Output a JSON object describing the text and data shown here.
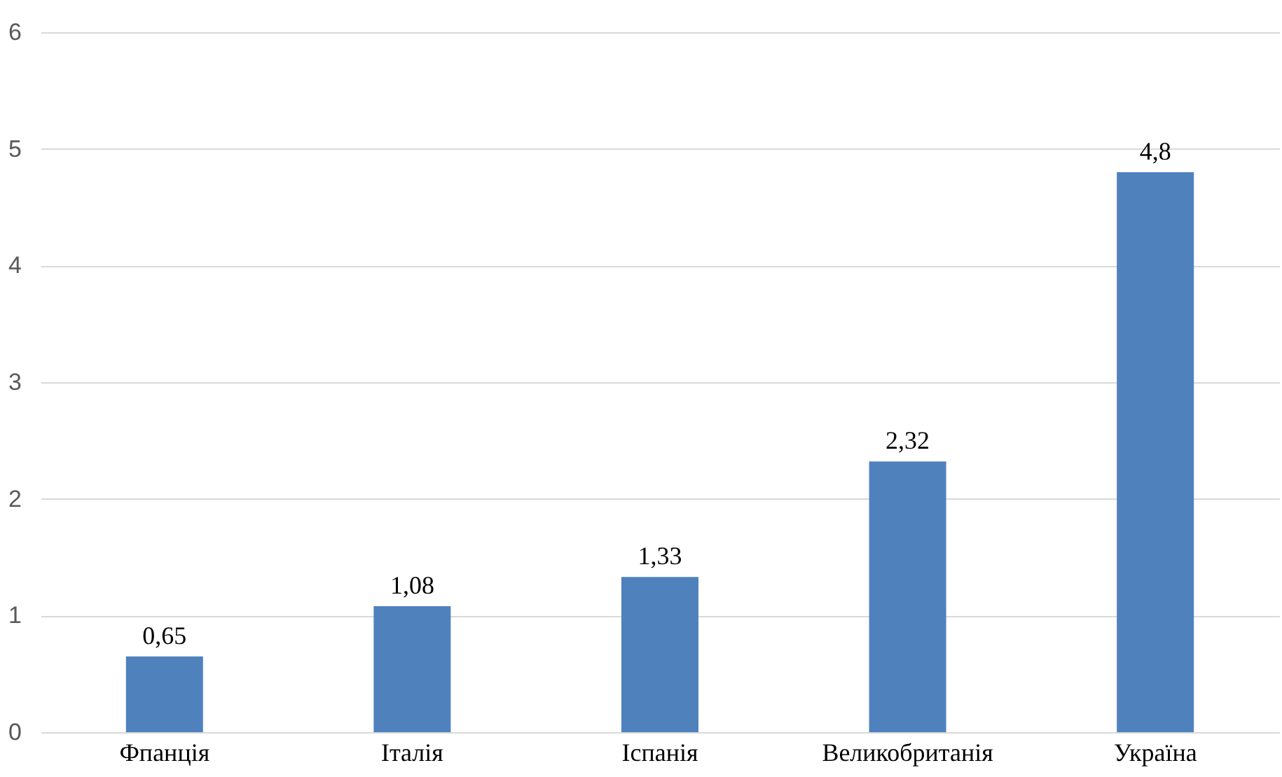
{
  "chart_data": {
    "type": "bar",
    "categories": [
      "Фпанція",
      "Італія",
      "Іспанія",
      "Великобританія",
      "Україна"
    ],
    "values": [
      0.65,
      1.08,
      1.33,
      2.32,
      4.8
    ],
    "value_labels": [
      "0,65",
      "1,08",
      "1,33",
      "2,32",
      "4,8"
    ],
    "color": "#4f81bd",
    "ylim": [
      0,
      6
    ],
    "yticks": [
      0,
      1,
      2,
      3,
      4,
      5,
      6
    ],
    "grid": "y"
  }
}
